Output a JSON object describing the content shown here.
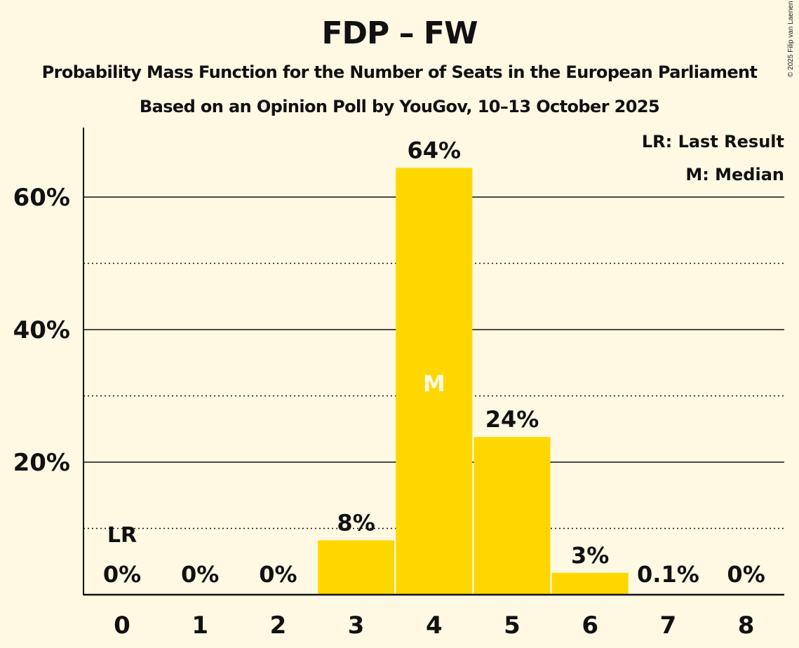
{
  "colors": {
    "background": "#FFF8E3",
    "bar": "#FFD700",
    "text": "#111111"
  },
  "copyright": "© 2025 Filip van Laenen",
  "chart_data": {
    "type": "bar",
    "title": "FDP – FW",
    "subtitle": "Probability Mass Function for the Number of Seats in the European Parliament",
    "subtitle2": "Based on an Opinion Poll by YouGov, 10–13 October 2025",
    "xlabel": "",
    "ylabel": "",
    "categories": [
      "0",
      "1",
      "2",
      "3",
      "4",
      "5",
      "6",
      "7",
      "8"
    ],
    "values": [
      0,
      0,
      0,
      8.2,
      64.4,
      23.8,
      3.3,
      0.1,
      0
    ],
    "value_labels": [
      "0%",
      "0%",
      "0%",
      "8%",
      "64%",
      "24%",
      "3%",
      "0.1%",
      "0%"
    ],
    "ylim": [
      0,
      70
    ],
    "yticks": [
      20,
      40,
      60
    ],
    "ytick_labels": [
      "20%",
      "40%",
      "60%"
    ],
    "minor_gridlines": [
      10,
      30,
      50
    ],
    "grid": true,
    "last_result_index": 0,
    "last_result_marker": "LR",
    "median_index": 4,
    "median_marker": "M",
    "legend": [
      "LR: Last Result",
      "M: Median"
    ],
    "legend_position": "top-right"
  }
}
